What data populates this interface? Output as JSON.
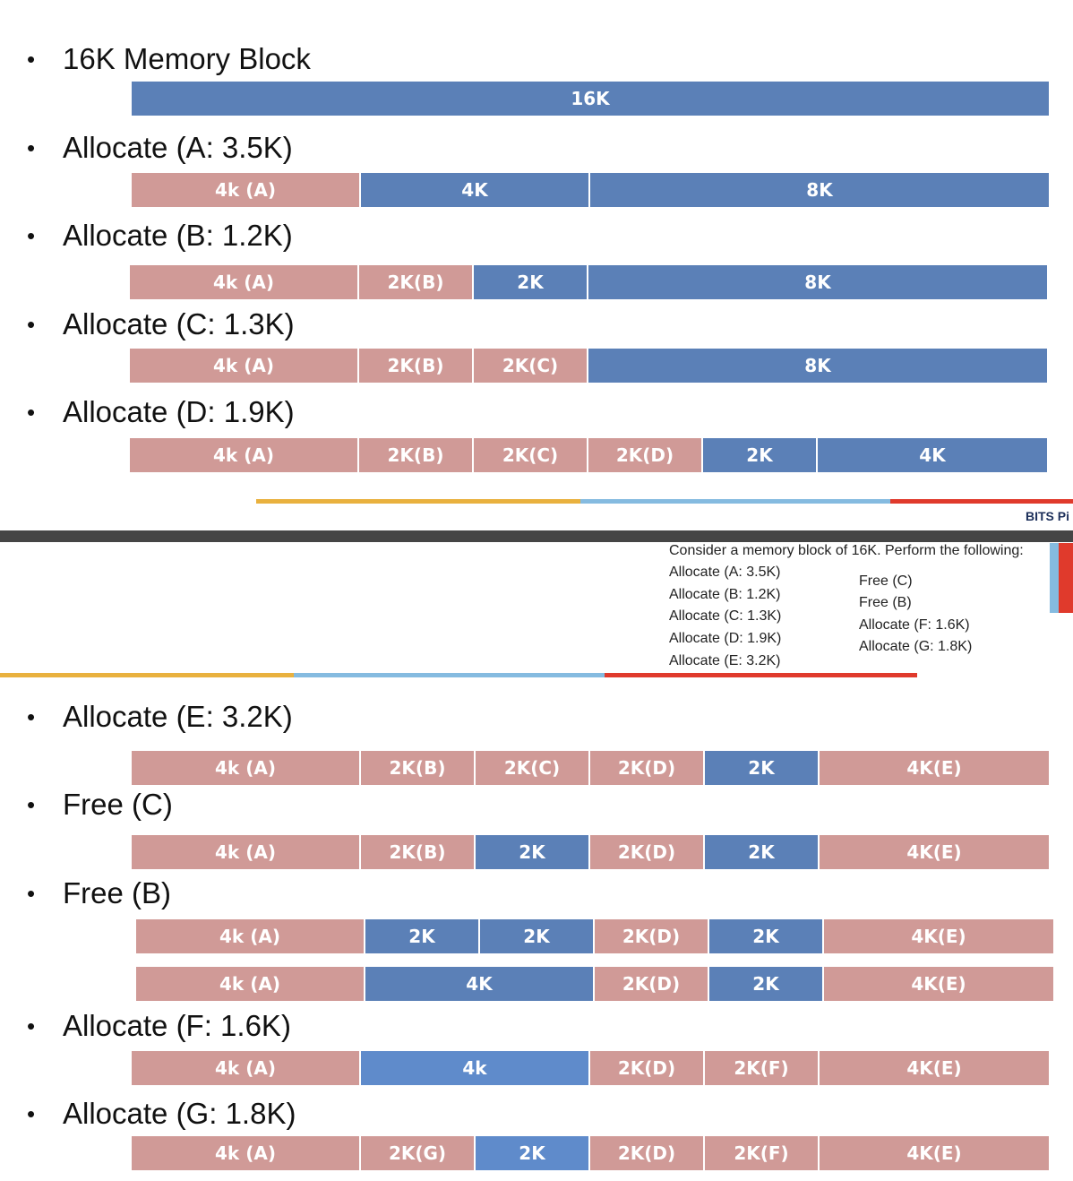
{
  "colors": {
    "allocated": "#d09a97",
    "free": "#5b80b7",
    "free_light": "#5f8bcb",
    "stripe_orange": "#e9b13e",
    "stripe_blue": "#85bbe0",
    "stripe_red": "#e03a2c"
  },
  "top": {
    "headings": [
      "16K Memory Block",
      "Allocate (A: 3.5K)",
      "Allocate (B: 1.2K)",
      "Allocate (C: 1.3K)",
      "Allocate (D: 1.9K)"
    ],
    "rows": [
      [
        {
          "label": "16K",
          "size": 16,
          "state": "free"
        }
      ],
      [
        {
          "label": "4k (A)",
          "size": 4,
          "state": "alloc"
        },
        {
          "label": "4K",
          "size": 4,
          "state": "free"
        },
        {
          "label": "8K",
          "size": 8,
          "state": "free"
        }
      ],
      [
        {
          "label": "4k (A)",
          "size": 4,
          "state": "alloc"
        },
        {
          "label": "2K(B)",
          "size": 2,
          "state": "alloc"
        },
        {
          "label": "2K",
          "size": 2,
          "state": "free"
        },
        {
          "label": "8K",
          "size": 8,
          "state": "free"
        }
      ],
      [
        {
          "label": "4k (A)",
          "size": 4,
          "state": "alloc"
        },
        {
          "label": "2K(B)",
          "size": 2,
          "state": "alloc"
        },
        {
          "label": "2K(C)",
          "size": 2,
          "state": "alloc"
        },
        {
          "label": "8K",
          "size": 8,
          "state": "free"
        }
      ],
      [
        {
          "label": "4k (A)",
          "size": 4,
          "state": "alloc"
        },
        {
          "label": "2K(B)",
          "size": 2,
          "state": "alloc"
        },
        {
          "label": "2K(C)",
          "size": 2,
          "state": "alloc"
        },
        {
          "label": "2K(D)",
          "size": 2,
          "state": "alloc"
        },
        {
          "label": "2K",
          "size": 2,
          "state": "free"
        },
        {
          "label": "4K",
          "size": 4,
          "state": "free"
        }
      ]
    ],
    "brand": "BITS Pi"
  },
  "task": {
    "title": "Consider a memory block of 16K. Perform the following:",
    "left_steps": [
      "Allocate (A: 3.5K)",
      "Allocate (B: 1.2K)",
      "Allocate (C: 1.3K)",
      "Allocate (D: 1.9K)",
      "Allocate (E: 3.2K)"
    ],
    "right_steps": [
      "Free (C)",
      "Free (B)",
      "Allocate (F: 1.6K)",
      "Allocate (G: 1.8K)"
    ]
  },
  "bottom": {
    "headings": [
      "Allocate (E: 3.2K)",
      "Free (C)",
      "Free (B)",
      "Allocate (F: 1.6K)",
      "Allocate (G: 1.8K)"
    ],
    "rows": [
      [
        {
          "label": "4k (A)",
          "size": 4,
          "state": "alloc"
        },
        {
          "label": "2K(B)",
          "size": 2,
          "state": "alloc"
        },
        {
          "label": "2K(C)",
          "size": 2,
          "state": "alloc"
        },
        {
          "label": "2K(D)",
          "size": 2,
          "state": "alloc"
        },
        {
          "label": "2K",
          "size": 2,
          "state": "free"
        },
        {
          "label": "4K(E)",
          "size": 4,
          "state": "alloc"
        }
      ],
      [
        {
          "label": "4k (A)",
          "size": 4,
          "state": "alloc"
        },
        {
          "label": "2K(B)",
          "size": 2,
          "state": "alloc"
        },
        {
          "label": "2K",
          "size": 2,
          "state": "free"
        },
        {
          "label": "2K(D)",
          "size": 2,
          "state": "alloc"
        },
        {
          "label": "2K",
          "size": 2,
          "state": "free"
        },
        {
          "label": "4K(E)",
          "size": 4,
          "state": "alloc"
        }
      ],
      [
        {
          "label": "4k (A)",
          "size": 4,
          "state": "alloc"
        },
        {
          "label": "2K",
          "size": 2,
          "state": "free"
        },
        {
          "label": "2K",
          "size": 2,
          "state": "free"
        },
        {
          "label": "2K(D)",
          "size": 2,
          "state": "alloc"
        },
        {
          "label": "2K",
          "size": 2,
          "state": "free"
        },
        {
          "label": "4K(E)",
          "size": 4,
          "state": "alloc"
        }
      ],
      [
        {
          "label": "4k (A)",
          "size": 4,
          "state": "alloc"
        },
        {
          "label": "4K",
          "size": 4,
          "state": "free"
        },
        {
          "label": "2K(D)",
          "size": 2,
          "state": "alloc"
        },
        {
          "label": "2K",
          "size": 2,
          "state": "free"
        },
        {
          "label": "4K(E)",
          "size": 4,
          "state": "alloc"
        }
      ],
      [
        {
          "label": "4k (A)",
          "size": 4,
          "state": "alloc"
        },
        {
          "label": "4k",
          "size": 4,
          "state": "free2"
        },
        {
          "label": "2K(D)",
          "size": 2,
          "state": "alloc"
        },
        {
          "label": "2K(F)",
          "size": 2,
          "state": "alloc"
        },
        {
          "label": "4K(E)",
          "size": 4,
          "state": "alloc"
        }
      ],
      [
        {
          "label": "4k (A)",
          "size": 4,
          "state": "alloc"
        },
        {
          "label": "2K(G)",
          "size": 2,
          "state": "alloc"
        },
        {
          "label": "2K",
          "size": 2,
          "state": "free2"
        },
        {
          "label": "2K(D)",
          "size": 2,
          "state": "alloc"
        },
        {
          "label": "2K(F)",
          "size": 2,
          "state": "alloc"
        },
        {
          "label": "4K(E)",
          "size": 4,
          "state": "alloc"
        }
      ]
    ]
  }
}
